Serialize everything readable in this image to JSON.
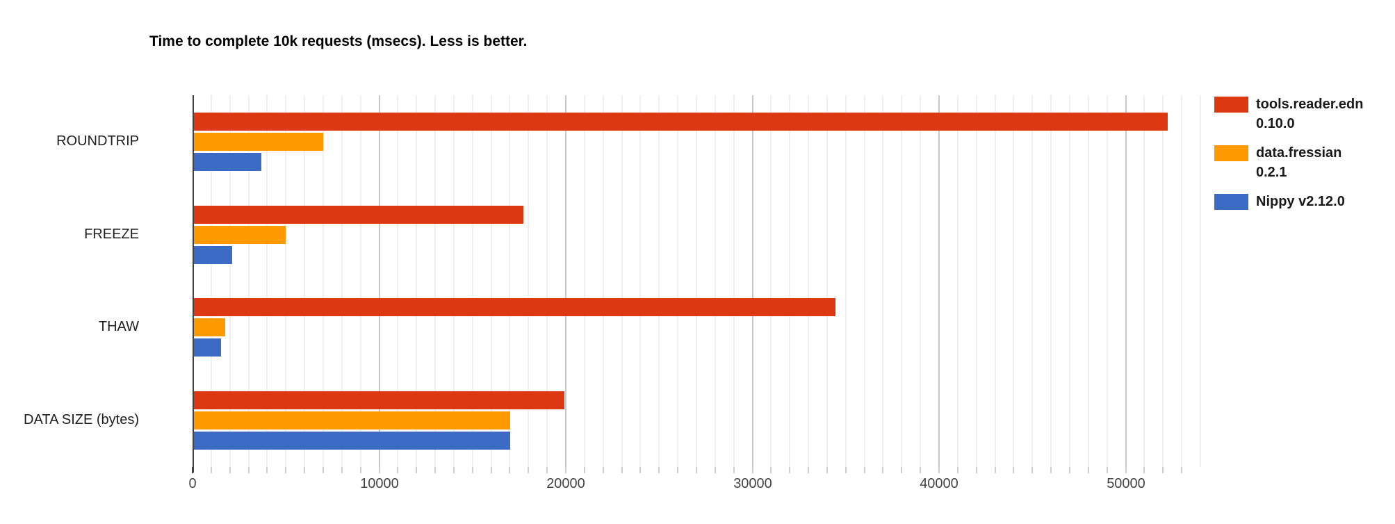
{
  "chart_data": {
    "type": "bar",
    "orientation": "horizontal",
    "title": "Time to complete 10k requests (msecs). Less is better.",
    "categories": [
      "ROUNDTRIP",
      "FREEZE",
      "THAW",
      "DATA SIZE (bytes)"
    ],
    "series": [
      {
        "name": "tools.reader.edn 0.10.0",
        "color": "#dc3912",
        "values": [
          52200,
          17700,
          34400,
          19900
        ]
      },
      {
        "name": "data.fressian 0.2.1",
        "color": "#ff9900",
        "values": [
          6950,
          4950,
          1700,
          17000
        ]
      },
      {
        "name": "Nippy v2.12.0",
        "color": "#3b6bc5",
        "values": [
          3650,
          2100,
          1500,
          17000
        ]
      }
    ],
    "x_axis": {
      "min": 0,
      "max": 54300,
      "major_tick_step": 10000,
      "minor_gridline_step": 1000,
      "tick_labels": [
        "0",
        "10000",
        "20000",
        "30000",
        "40000",
        "50000"
      ]
    },
    "legend_position": "right",
    "grid": true,
    "background_color": "#ffffff"
  }
}
